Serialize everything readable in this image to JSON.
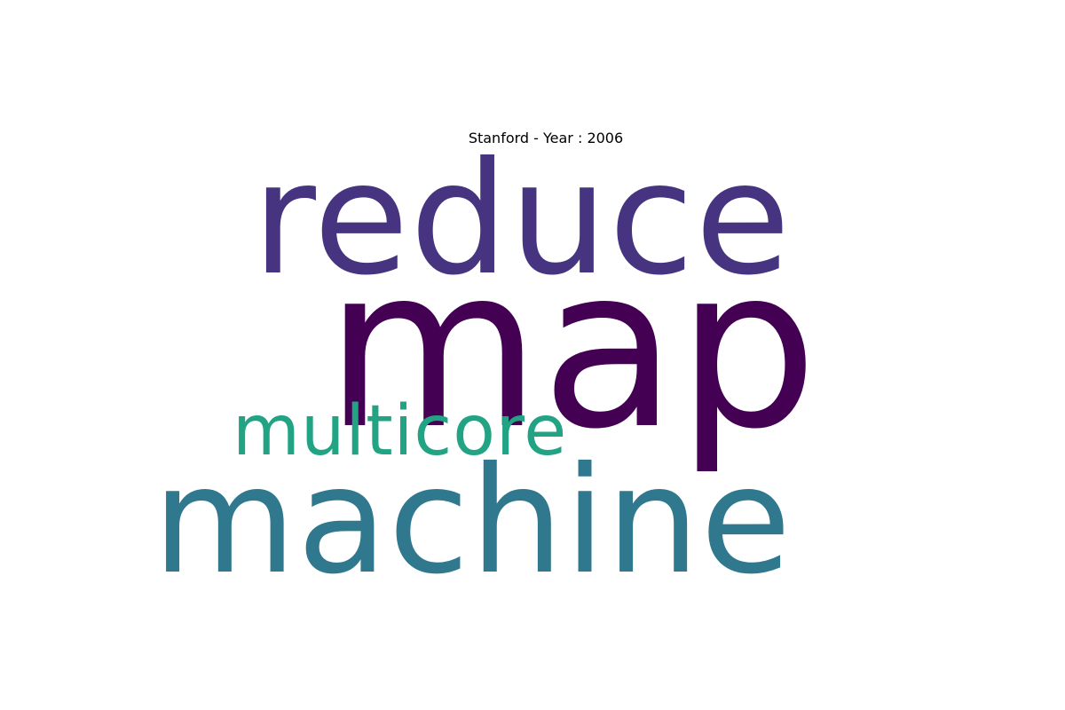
{
  "chart_data": {
    "type": "wordcloud",
    "title": "Stanford - Year : 2006",
    "words": [
      {
        "id": "reduce",
        "text": "reduce",
        "weight": 0.7,
        "color": "#463480"
      },
      {
        "id": "map",
        "text": "map",
        "weight": 1.0,
        "color": "#440154"
      },
      {
        "id": "multicore",
        "text": "multicore",
        "weight": 0.32,
        "color": "#22a384"
      },
      {
        "id": "machine",
        "text": "machine",
        "weight": 0.66,
        "color": "#2f788e"
      }
    ]
  }
}
